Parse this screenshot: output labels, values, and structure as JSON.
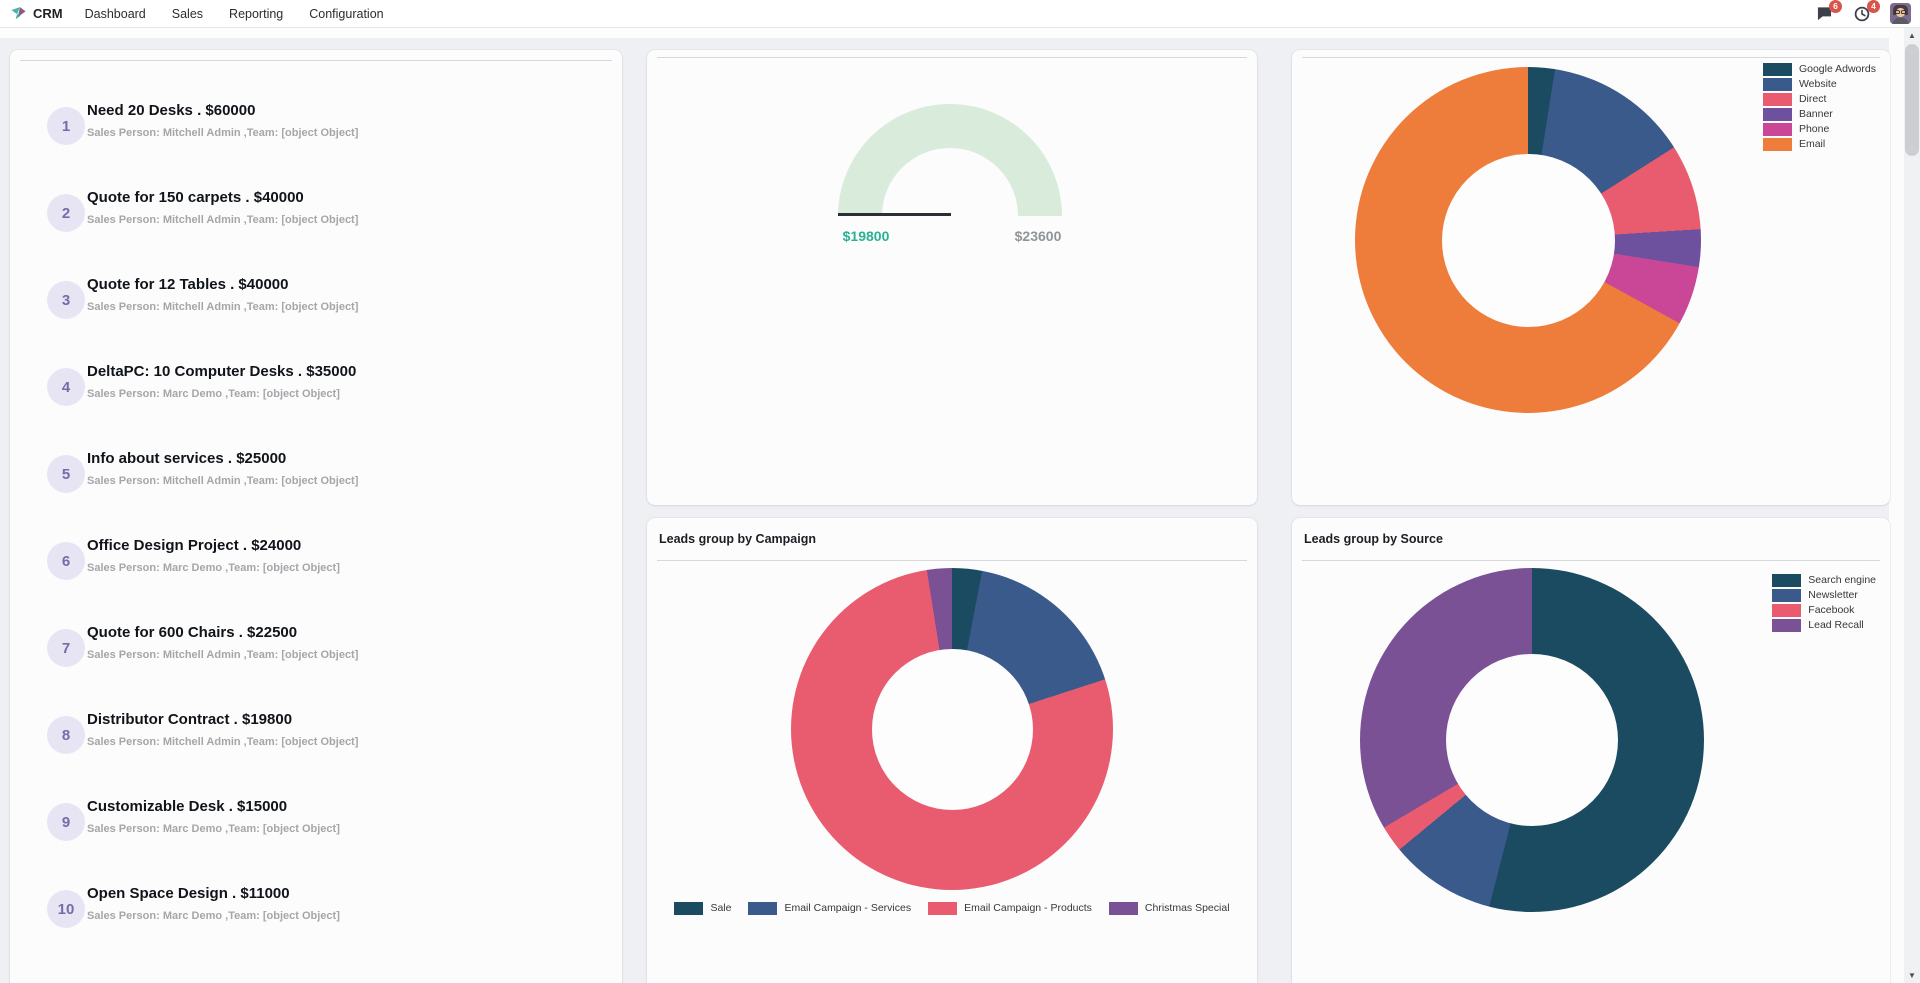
{
  "navbar": {
    "brand": "CRM",
    "menus": [
      "Dashboard",
      "Sales",
      "Reporting",
      "Configuration"
    ],
    "messages_badge": "6",
    "activities_badge": "4"
  },
  "icons": {
    "chat": "speech-bubble",
    "activities": "clock",
    "scroll_up": "▲",
    "scroll_down": "▼"
  },
  "opportunities": {
    "items": [
      {
        "rank": "1",
        "title": "Need 20 Desks . $60000",
        "subtitle": "Sales Person: Mitchell Admin ,Team: [object Object]"
      },
      {
        "rank": "2",
        "title": "Quote for 150 carpets . $40000",
        "subtitle": "Sales Person: Mitchell Admin ,Team: [object Object]"
      },
      {
        "rank": "3",
        "title": "Quote for 12 Tables . $40000",
        "subtitle": "Sales Person: Mitchell Admin ,Team: [object Object]"
      },
      {
        "rank": "4",
        "title": "DeltaPC: 10 Computer Desks . $35000",
        "subtitle": "Sales Person: Marc Demo ,Team: [object Object]"
      },
      {
        "rank": "5",
        "title": "Info about services . $25000",
        "subtitle": "Sales Person: Mitchell Admin ,Team: [object Object]"
      },
      {
        "rank": "6",
        "title": "Office Design Project . $24000",
        "subtitle": "Sales Person: Marc Demo ,Team: [object Object]"
      },
      {
        "rank": "7",
        "title": "Quote for 600 Chairs . $22500",
        "subtitle": "Sales Person: Mitchell Admin ,Team: [object Object]"
      },
      {
        "rank": "8",
        "title": "Distributor Contract . $19800",
        "subtitle": "Sales Person: Mitchell Admin ,Team: [object Object]"
      },
      {
        "rank": "9",
        "title": "Customizable Desk . $15000",
        "subtitle": "Sales Person: Marc Demo ,Team: [object Object]"
      },
      {
        "rank": "10",
        "title": "Open Space Design . $11000",
        "subtitle": "Sales Person: Marc Demo ,Team: [object Object]"
      }
    ]
  },
  "chart_data": [
    {
      "type": "gauge",
      "title": "",
      "value": 19800,
      "max": 23600,
      "value_label": "$19800",
      "max_label": "$23600",
      "arc_color": "#d9ecdb",
      "needle_color": "#2b2e35",
      "value_color": "#2bb193",
      "max_color": "#8f9496"
    },
    {
      "type": "pie",
      "title": "",
      "hole": 0.5,
      "legend_position": "top-right",
      "slices": [
        {
          "label": "Google Adwords",
          "value": 2.5,
          "color": "#1a4b61"
        },
        {
          "label": "Website",
          "value": 13.5,
          "color": "#3a5a8c"
        },
        {
          "label": "Direct",
          "value": 8,
          "color": "#e95c6f"
        },
        {
          "label": "Banner",
          "value": 3.5,
          "color": "#6d519f"
        },
        {
          "label": "Phone",
          "value": 5.5,
          "color": "#c94796"
        },
        {
          "label": "Email",
          "value": 67,
          "color": "#ee7d3b"
        }
      ]
    },
    {
      "type": "pie",
      "title": "Leads group by Campaign",
      "hole": 0.5,
      "legend_position": "bottom",
      "slices": [
        {
          "label": "Sale",
          "value": 3,
          "color": "#1a4b61"
        },
        {
          "label": "Email Campaign - Services",
          "value": 17,
          "color": "#3a5a8c"
        },
        {
          "label": "Email Campaign - Products",
          "value": 77.5,
          "color": "#e95c6f"
        },
        {
          "label": "Christmas Special",
          "value": 2.5,
          "color": "#7a5195"
        }
      ]
    },
    {
      "type": "pie",
      "title": "Leads group by Source",
      "hole": 0.5,
      "legend_position": "top-right",
      "slices": [
        {
          "label": "Search engine",
          "value": 54,
          "color": "#1a4b61"
        },
        {
          "label": "Newsletter",
          "value": 10,
          "color": "#3a5a8c"
        },
        {
          "label": "Facebook",
          "value": 2.5,
          "color": "#e95c6f"
        },
        {
          "label": "Lead Recall",
          "value": 33.5,
          "color": "#7a5195"
        }
      ]
    }
  ]
}
